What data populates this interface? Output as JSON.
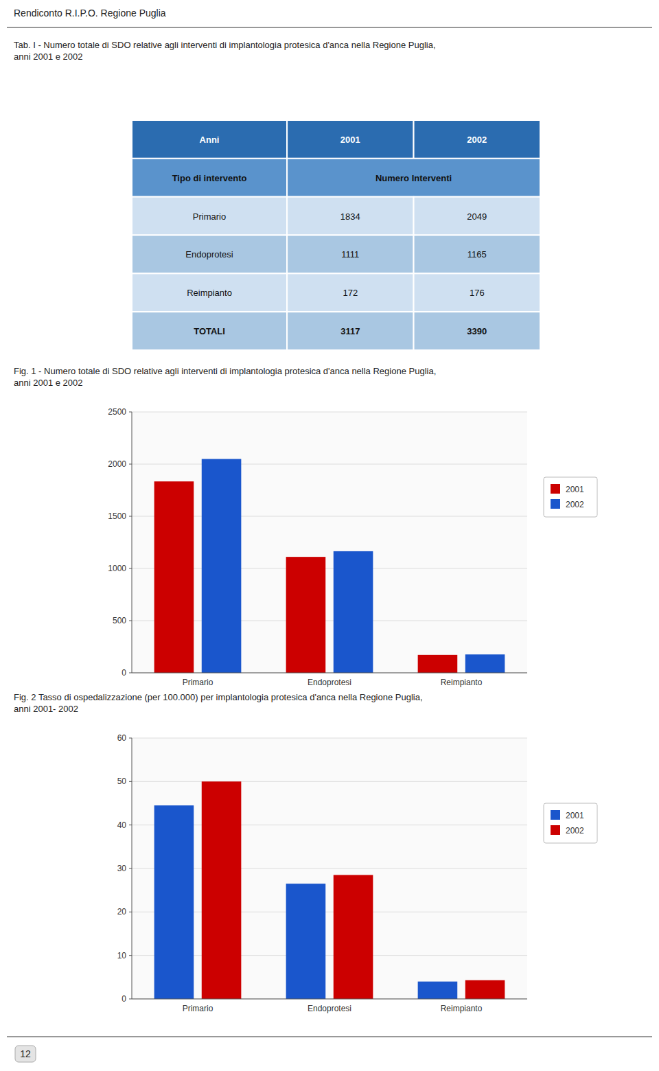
{
  "header": "Rendiconto R.I.P.O. Regione Puglia",
  "footer": "12",
  "chart_data": [
    {
      "type": "table",
      "title": "Tab. I - Numero totale di SDO relative agli interventi di implantologia protesica d'anca nella Regione Puglia,\nanni 2001 e 2002",
      "columns": [
        "Anni",
        "2001",
        "2002"
      ],
      "subheader": [
        "Tipo di intervento",
        "Numero Interventi"
      ],
      "rows": [
        [
          "Primario",
          1834,
          2049
        ],
        [
          "Endoprotesi",
          1111,
          1165
        ],
        [
          "Reimpianto",
          172,
          176
        ],
        [
          "TOTALI",
          3117,
          3390
        ]
      ]
    },
    {
      "type": "bar",
      "title": "Fig. 1 - Numero totale di SDO relative agli interventi di implantologia protesica d'anca nella Regione Puglia,\nanni 2001 e 2002",
      "categories": [
        "Primario",
        "Endoprotesi",
        "Reimpianto"
      ],
      "series": [
        {
          "name": "2001",
          "color": "#cc0000",
          "values": [
            1834,
            1111,
            172
          ]
        },
        {
          "name": "2002",
          "color": "#1a56cc",
          "values": [
            2049,
            1165,
            176
          ]
        }
      ],
      "ylim": [
        0,
        2500
      ],
      "yticks": [
        0,
        500,
        1000,
        1500,
        2000,
        2500
      ],
      "grid": true,
      "legend": "right"
    },
    {
      "type": "bar",
      "title": "Fig. 2  Tasso di ospedalizzazione (per 100.000) per implantologia protesica d'anca nella Regione Puglia,\nanni 2001- 2002",
      "categories": [
        "Primario",
        "Endoprotesi",
        "Reimpianto"
      ],
      "series": [
        {
          "name": "2001",
          "color": "#1a56cc",
          "values": [
            44.5,
            26.5,
            4.0
          ]
        },
        {
          "name": "2002",
          "color": "#cc0000",
          "values": [
            50.0,
            28.5,
            4.3
          ]
        }
      ],
      "ylim": [
        0,
        60
      ],
      "yticks": [
        0,
        10,
        20,
        30,
        40,
        50,
        60
      ],
      "grid": true,
      "legend": "right"
    }
  ]
}
